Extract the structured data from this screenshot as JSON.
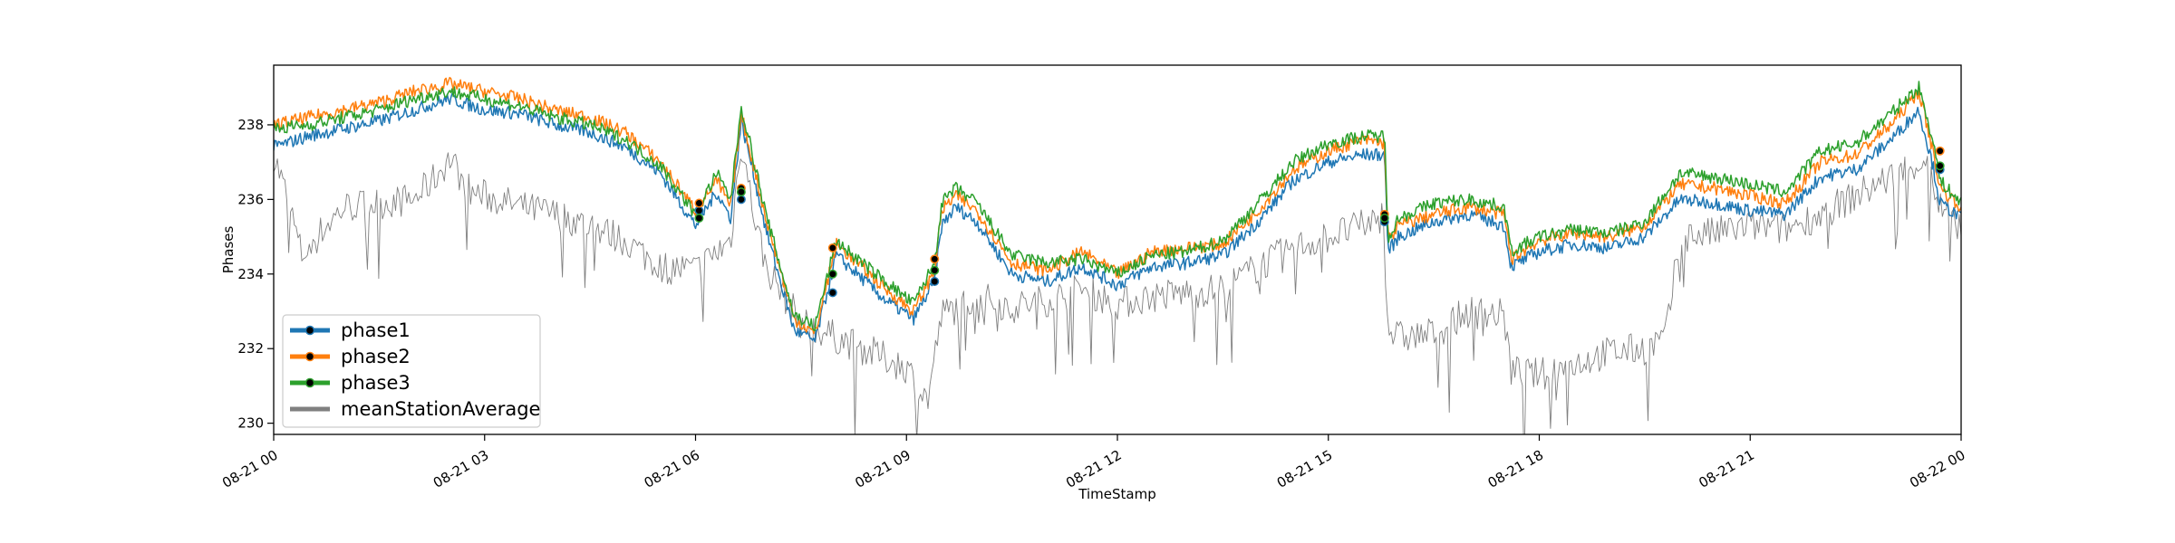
{
  "chart_data": {
    "type": "line",
    "title": "",
    "xlabel": "TimeStamp",
    "ylabel": "Phases",
    "x_range": [
      "08-21 00",
      "08-22 00"
    ],
    "ylim": [
      229.7,
      239.6
    ],
    "x_ticks": [
      {
        "hour": 0,
        "label": "08-21 00"
      },
      {
        "hour": 3,
        "label": "08-21 03"
      },
      {
        "hour": 6,
        "label": "08-21 06"
      },
      {
        "hour": 9,
        "label": "08-21 09"
      },
      {
        "hour": 12,
        "label": "08-21 12"
      },
      {
        "hour": 15,
        "label": "08-21 15"
      },
      {
        "hour": 18,
        "label": "08-21 18"
      },
      {
        "hour": 21,
        "label": "08-21 21"
      },
      {
        "hour": 24,
        "label": "08-22 00"
      }
    ],
    "y_ticks": [
      230,
      232,
      234,
      236,
      238
    ],
    "grid": false,
    "legend": {
      "placement": "lower-left"
    },
    "colors": {
      "phase1": "#1f77b4",
      "phase2": "#ff7f0e",
      "phase3": "#2ca02c",
      "meanStationAverage": "#808080",
      "marker": "#000000"
    },
    "series": [
      {
        "name": "phase1",
        "x_hours": [
          0,
          0.5,
          1,
          1.5,
          2,
          2.5,
          3,
          3.5,
          4,
          4.5,
          5,
          5.5,
          6,
          6.3,
          6.5,
          6.65,
          6.8,
          7,
          7.4,
          7.7,
          8,
          8.3,
          8.7,
          9.1,
          9.4,
          9.5,
          9.7,
          10,
          10.5,
          11,
          11.5,
          12,
          12.5,
          13,
          13.5,
          14,
          14.5,
          15,
          15.5,
          15.8,
          15.85,
          16,
          16.5,
          17,
          17.5,
          17.6,
          18,
          18.5,
          19,
          19.5,
          20,
          20.5,
          21,
          21.5,
          22,
          22.5,
          23,
          23.4,
          23.6,
          23.7,
          24
        ],
        "values": [
          237.4,
          237.7,
          237.9,
          238.1,
          238.4,
          238.7,
          238.4,
          238.3,
          238.0,
          237.8,
          237.4,
          236.7,
          235.3,
          236.2,
          235.5,
          238.1,
          236.9,
          235.2,
          232.5,
          232.2,
          234.5,
          234.0,
          233.3,
          232.8,
          233.8,
          235.3,
          235.8,
          235.4,
          234.0,
          233.8,
          234.2,
          233.7,
          234.2,
          234.3,
          234.5,
          235.4,
          236.5,
          237.0,
          237.2,
          237.2,
          234.6,
          235.0,
          235.4,
          235.6,
          235.3,
          234.2,
          234.6,
          234.8,
          234.7,
          235.0,
          236.0,
          235.9,
          235.7,
          235.6,
          236.6,
          236.8,
          237.6,
          238.4,
          236.9,
          235.9,
          235.5
        ]
      },
      {
        "name": "phase2",
        "x_hours": [
          0,
          0.5,
          1,
          1.5,
          2,
          2.5,
          3,
          3.5,
          4,
          4.5,
          5,
          5.5,
          6,
          6.3,
          6.5,
          6.65,
          6.8,
          7,
          7.4,
          7.7,
          8,
          8.3,
          8.7,
          9.1,
          9.4,
          9.5,
          9.7,
          10,
          10.5,
          11,
          11.5,
          12,
          12.5,
          13,
          13.5,
          14,
          14.5,
          15,
          15.5,
          15.8,
          15.85,
          16,
          16.5,
          17,
          17.5,
          17.6,
          18,
          18.5,
          19,
          19.5,
          20,
          20.5,
          21,
          21.5,
          22,
          22.5,
          23,
          23.4,
          23.6,
          23.7,
          24
        ],
        "values": [
          238.0,
          238.2,
          238.4,
          238.6,
          238.9,
          239.1,
          238.9,
          238.7,
          238.4,
          238.2,
          237.8,
          237.0,
          235.7,
          236.5,
          235.8,
          238.3,
          237.1,
          235.5,
          232.8,
          232.4,
          234.8,
          234.3,
          233.6,
          233.0,
          234.1,
          235.7,
          236.1,
          235.7,
          234.3,
          234.1,
          234.6,
          234.0,
          234.6,
          234.7,
          234.8,
          235.7,
          236.8,
          237.3,
          237.6,
          237.5,
          234.9,
          235.3,
          235.6,
          235.8,
          235.6,
          234.4,
          234.9,
          235.1,
          235.0,
          235.3,
          236.4,
          236.3,
          236.1,
          235.9,
          237.0,
          237.2,
          238.0,
          238.9,
          237.3,
          236.3,
          235.8
        ]
      },
      {
        "name": "phase3",
        "x_hours": [
          0,
          0.5,
          1,
          1.5,
          2,
          2.5,
          3,
          3.5,
          4,
          4.5,
          5,
          5.5,
          6,
          6.3,
          6.5,
          6.65,
          6.8,
          7,
          7.4,
          7.7,
          8,
          8.3,
          8.7,
          9.1,
          9.4,
          9.5,
          9.7,
          10,
          10.5,
          11,
          11.5,
          12,
          12.5,
          13,
          13.5,
          14,
          14.5,
          15,
          15.5,
          15.8,
          15.85,
          16,
          16.5,
          17,
          17.5,
          17.6,
          18,
          18.5,
          19,
          19.5,
          20,
          20.5,
          21,
          21.5,
          22,
          22.5,
          23,
          23.4,
          23.6,
          23.7,
          24
        ],
        "values": [
          237.9,
          238.0,
          238.2,
          238.4,
          238.7,
          238.9,
          238.7,
          238.5,
          238.2,
          238.0,
          237.6,
          236.9,
          235.6,
          236.7,
          236.0,
          238.5,
          237.3,
          235.6,
          232.9,
          232.6,
          234.9,
          234.4,
          233.8,
          233.2,
          234.3,
          235.9,
          236.3,
          235.9,
          234.5,
          234.3,
          234.4,
          234.0,
          234.5,
          234.6,
          234.9,
          235.9,
          237.0,
          237.5,
          237.7,
          237.7,
          235.0,
          235.5,
          235.9,
          236.0,
          235.8,
          234.6,
          235.0,
          235.2,
          235.1,
          235.4,
          236.7,
          236.6,
          236.4,
          236.2,
          237.3,
          237.5,
          238.3,
          239.0,
          237.6,
          236.5,
          235.9
        ]
      },
      {
        "name": "meanStationAverage",
        "x_hours": [
          0,
          0.2,
          0.4,
          0.7,
          1,
          1.5,
          2,
          2.3,
          2.5,
          2.8,
          3,
          3.5,
          4,
          4.5,
          5,
          5.5,
          6,
          6.5,
          6.65,
          6.8,
          7,
          7.5,
          8,
          8.5,
          9,
          9.3,
          9.5,
          10,
          10.5,
          11,
          11.5,
          12,
          12.5,
          13,
          13.5,
          14,
          14.5,
          15,
          15.5,
          15.8,
          15.85,
          16,
          16.5,
          17,
          17.5,
          17.6,
          18,
          18.5,
          19,
          19.5,
          19.8,
          20,
          20.5,
          21,
          21.5,
          22,
          22.5,
          23,
          23.5,
          23.7,
          24
        ],
        "values": [
          237.2,
          236.0,
          234.5,
          235.2,
          235.8,
          235.9,
          236.0,
          236.6,
          237.1,
          236.2,
          236.1,
          235.8,
          235.6,
          235.3,
          234.9,
          234.2,
          234.1,
          234.9,
          237.6,
          235.9,
          234.2,
          232.7,
          232.3,
          231.9,
          231.5,
          230.6,
          232.9,
          233.4,
          233.1,
          233.3,
          233.6,
          233.2,
          233.4,
          233.5,
          233.6,
          234.2,
          234.7,
          235.0,
          235.3,
          235.6,
          232.5,
          232.3,
          232.4,
          233.0,
          232.9,
          231.4,
          231.3,
          231.6,
          231.9,
          232.0,
          232.3,
          235.0,
          235.1,
          235.3,
          235.2,
          235.6,
          236.1,
          236.6,
          237.1,
          235.8,
          235.4
        ]
      }
    ],
    "marker_points": [
      {
        "series": "phase1",
        "x_hours": 6.05,
        "y": 235.7
      },
      {
        "series": "phase2",
        "x_hours": 6.05,
        "y": 235.9
      },
      {
        "series": "phase3",
        "x_hours": 6.05,
        "y": 235.5
      },
      {
        "series": "phase1",
        "x_hours": 6.65,
        "y": 236.0
      },
      {
        "series": "phase2",
        "x_hours": 6.65,
        "y": 236.3
      },
      {
        "series": "phase3",
        "x_hours": 6.65,
        "y": 236.2
      },
      {
        "series": "phase1",
        "x_hours": 7.95,
        "y": 233.5
      },
      {
        "series": "phase2",
        "x_hours": 7.95,
        "y": 234.7
      },
      {
        "series": "phase3",
        "x_hours": 7.95,
        "y": 234.0
      },
      {
        "series": "phase1",
        "x_hours": 9.4,
        "y": 233.8
      },
      {
        "series": "phase2",
        "x_hours": 9.4,
        "y": 234.4
      },
      {
        "series": "phase3",
        "x_hours": 9.4,
        "y": 234.1
      },
      {
        "series": "phase1",
        "x_hours": 15.8,
        "y": 235.4
      },
      {
        "series": "phase2",
        "x_hours": 15.8,
        "y": 235.6
      },
      {
        "series": "phase3",
        "x_hours": 15.8,
        "y": 235.5
      },
      {
        "series": "phase1",
        "x_hours": 23.7,
        "y": 236.8
      },
      {
        "series": "phase2",
        "x_hours": 23.7,
        "y": 237.3
      },
      {
        "series": "phase3",
        "x_hours": 23.7,
        "y": 236.9
      }
    ]
  }
}
